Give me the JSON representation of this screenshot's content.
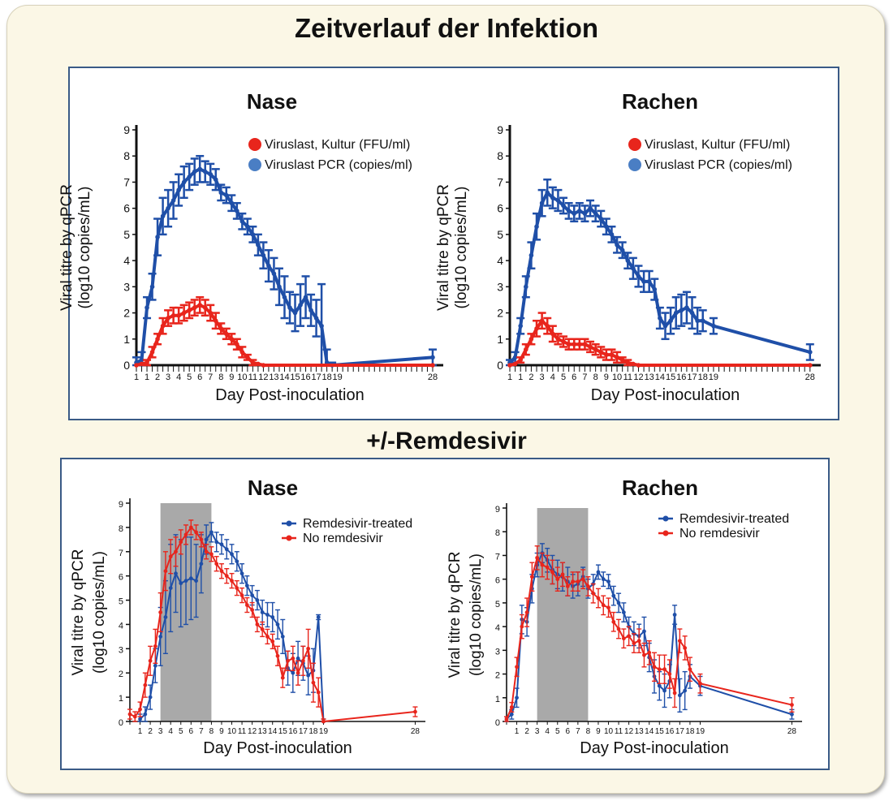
{
  "titles": {
    "top": "Zeitverlauf der Infektion",
    "bottom": "+/-Remdesivir"
  },
  "colors": {
    "red": "#e8251c",
    "blue": "#1f4fa8",
    "legend_blue_dot": "#4a7ec4",
    "shade": "#a9a9a9",
    "axis": "#111111"
  },
  "chart_data": [
    {
      "type": "line",
      "panel": "top-left",
      "title": "Nase",
      "xlabel": "Day Post-inoculation",
      "ylabel_lines": [
        "Viral titre by qPCR",
        "(log10 copies/mL)"
      ],
      "ylim": [
        0,
        9
      ],
      "yticks": [
        0,
        1,
        2,
        3,
        4,
        5,
        6,
        7,
        8,
        9
      ],
      "xlim": [
        0,
        29
      ],
      "xtick_labels": [
        "1",
        "1",
        "2",
        "3",
        "4",
        "5",
        "6",
        "7",
        "8",
        "9",
        "10",
        "11",
        "12",
        "13",
        "14",
        "15",
        "16",
        "17",
        "18",
        "19",
        "28"
      ],
      "legend": {
        "position": "top-right",
        "entries": [
          "Viruslast, Kultur (FFU/ml)",
          "Viruslast PCR (copies/ml)"
        ]
      },
      "series": [
        {
          "name": "Viruslast PCR (copies/ml)",
          "color": "blue",
          "x": [
            0,
            0.5,
            1,
            1.5,
            2,
            2.5,
            3,
            3.5,
            4,
            4.5,
            5,
            5.5,
            6,
            6.5,
            7,
            7.5,
            8,
            8.5,
            9,
            9.5,
            10,
            10.5,
            11,
            11.5,
            12,
            12.5,
            13,
            13.5,
            14,
            14.5,
            15,
            15.5,
            16,
            16.5,
            17,
            17.5,
            18,
            18.5,
            28
          ],
          "y": [
            0.1,
            0.2,
            2.2,
            3.0,
            4.9,
            5.7,
            6.0,
            6.3,
            6.7,
            7.0,
            7.2,
            7.4,
            7.5,
            7.4,
            7.3,
            7.1,
            6.6,
            6.5,
            6.2,
            5.9,
            5.5,
            5.3,
            5.0,
            4.6,
            4.2,
            3.8,
            3.5,
            3.0,
            2.6,
            2.2,
            2.0,
            2.3,
            2.6,
            2.1,
            1.8,
            1.5,
            0.1,
            0.0,
            0.3
          ],
          "err": [
            0.2,
            0.3,
            0.4,
            0.5,
            0.7,
            0.7,
            0.7,
            0.7,
            0.6,
            0.6,
            0.5,
            0.5,
            0.5,
            0.4,
            0.4,
            0.4,
            0.3,
            0.3,
            0.3,
            0.3,
            0.3,
            0.3,
            0.3,
            0.4,
            0.5,
            0.6,
            0.6,
            0.7,
            0.8,
            0.6,
            0.7,
            0.8,
            0.8,
            0.6,
            0.7,
            1.6,
            0.5,
            0.1,
            0.3
          ]
        },
        {
          "name": "Viruslast, Kultur (FFU/ml)",
          "color": "red",
          "x": [
            0,
            0.5,
            1,
            1.5,
            2,
            2.5,
            3,
            3.5,
            4,
            4.5,
            5,
            5.5,
            6,
            6.5,
            7,
            7.5,
            8,
            8.5,
            9,
            9.5,
            10,
            10.5,
            11,
            11.5,
            12,
            28
          ],
          "y": [
            0.0,
            0.05,
            0.1,
            0.5,
            1.0,
            1.5,
            1.8,
            1.9,
            1.9,
            2.0,
            2.1,
            2.2,
            2.3,
            2.2,
            2.0,
            1.7,
            1.4,
            1.2,
            1.0,
            0.8,
            0.5,
            0.3,
            0.1,
            0.05,
            0.0,
            0.0
          ],
          "err": [
            0,
            0,
            0.1,
            0.2,
            0.2,
            0.3,
            0.3,
            0.3,
            0.3,
            0.3,
            0.3,
            0.3,
            0.3,
            0.3,
            0.3,
            0.3,
            0.2,
            0.2,
            0.2,
            0.2,
            0.2,
            0.1,
            0.1,
            0,
            0,
            0
          ]
        }
      ]
    },
    {
      "type": "line",
      "panel": "top-right",
      "title": "Rachen",
      "xlabel": "Day Post-inoculation",
      "ylabel_lines": [
        "Viral titre by qPCR",
        "(log10 copies/mL)"
      ],
      "ylim": [
        0,
        9
      ],
      "yticks": [
        0,
        1,
        2,
        3,
        4,
        5,
        6,
        7,
        8,
        9
      ],
      "xlim": [
        0,
        29
      ],
      "xtick_labels": [
        "1",
        "1",
        "2",
        "3",
        "4",
        "5",
        "6",
        "7",
        "8",
        "9",
        "10",
        "11",
        "12",
        "13",
        "14",
        "15",
        "16",
        "17",
        "18",
        "19",
        "28"
      ],
      "legend": {
        "position": "top-right",
        "entries": [
          "Viruslast, Kultur (FFU/ml)",
          "Viruslast PCR (copies/ml)"
        ]
      },
      "series": [
        {
          "name": "Viruslast PCR (copies/ml)",
          "color": "blue",
          "x": [
            0,
            0.5,
            1,
            1.5,
            2,
            2.5,
            3,
            3.5,
            4,
            4.5,
            5,
            5.5,
            6,
            6.5,
            7,
            7.5,
            8,
            8.5,
            9,
            9.5,
            10,
            10.5,
            11,
            11.5,
            12,
            12.5,
            13,
            13.5,
            14,
            14.5,
            15,
            15.5,
            16,
            16.5,
            17,
            17.5,
            18,
            19,
            28
          ],
          "y": [
            0.1,
            0.3,
            1.5,
            3.0,
            4.2,
            5.3,
            6.2,
            6.6,
            6.4,
            6.3,
            6.1,
            5.9,
            5.8,
            5.9,
            5.8,
            6.0,
            5.8,
            5.6,
            5.3,
            5.0,
            4.6,
            4.4,
            4.0,
            3.7,
            3.4,
            3.2,
            3.2,
            2.9,
            1.8,
            1.5,
            1.7,
            2.0,
            2.1,
            2.2,
            2.0,
            1.7,
            1.7,
            1.5,
            0.5
          ],
          "err": [
            0.1,
            0.2,
            0.3,
            0.4,
            0.5,
            0.5,
            0.5,
            0.5,
            0.4,
            0.4,
            0.3,
            0.3,
            0.3,
            0.3,
            0.3,
            0.3,
            0.3,
            0.3,
            0.3,
            0.3,
            0.3,
            0.3,
            0.3,
            0.4,
            0.4,
            0.4,
            0.4,
            0.4,
            0.4,
            0.5,
            0.5,
            0.6,
            0.6,
            0.6,
            0.6,
            0.5,
            0.4,
            0.3,
            0.3
          ]
        },
        {
          "name": "Viruslast, Kultur (FFU/ml)",
          "color": "red",
          "x": [
            0,
            0.5,
            1,
            1.5,
            2,
            2.5,
            3,
            3.5,
            4,
            4.5,
            5,
            5.5,
            6,
            6.5,
            7,
            7.5,
            8,
            8.5,
            9,
            9.5,
            10,
            10.5,
            11,
            11.5,
            12,
            28
          ],
          "y": [
            0.0,
            0.05,
            0.2,
            0.6,
            1.0,
            1.4,
            1.7,
            1.5,
            1.2,
            1.0,
            0.9,
            0.8,
            0.8,
            0.8,
            0.8,
            0.7,
            0.6,
            0.5,
            0.4,
            0.4,
            0.3,
            0.2,
            0.1,
            0.05,
            0.0,
            0.0
          ],
          "err": [
            0,
            0,
            0.1,
            0.2,
            0.2,
            0.3,
            0.3,
            0.3,
            0.3,
            0.2,
            0.2,
            0.2,
            0.2,
            0.2,
            0.2,
            0.2,
            0.2,
            0.2,
            0.2,
            0.2,
            0.2,
            0.1,
            0.1,
            0,
            0,
            0
          ]
        }
      ]
    },
    {
      "type": "line",
      "panel": "bottom-left",
      "title": "Nase",
      "xlabel": "Day Post-inoculation",
      "ylabel_lines": [
        "Viral titre by qPCR",
        "(log10 copies/mL)"
      ],
      "ylim": [
        0,
        9
      ],
      "yticks": [
        0,
        1,
        2,
        3,
        4,
        5,
        6,
        7,
        8,
        9
      ],
      "xlim": [
        0,
        29
      ],
      "xtick_labels": [
        "1",
        "2",
        "3",
        "4",
        "5",
        "6",
        "7",
        "8",
        "9",
        "10",
        "11",
        "12",
        "13",
        "14",
        "15",
        "16",
        "17",
        "18",
        "19",
        "28"
      ],
      "shaded_x": [
        3,
        8
      ],
      "legend": {
        "position": "top-right",
        "entries": [
          "Remdesivir-treated",
          "No remdesivir"
        ]
      },
      "series": [
        {
          "name": "Remdesivir-treated",
          "color": "blue",
          "x": [
            1,
            1.5,
            2,
            2.5,
            3,
            3.5,
            4,
            4.5,
            5,
            5.5,
            6,
            6.5,
            7,
            7.5,
            8,
            8.5,
            9,
            9.5,
            10,
            10.5,
            11,
            11.5,
            12,
            12.5,
            13,
            13.5,
            14,
            14.5,
            15,
            15.5,
            16,
            16.5,
            17,
            17.5,
            18,
            18.5,
            19
          ],
          "y": [
            0.1,
            0.3,
            1.0,
            2.3,
            3.5,
            4.3,
            5.5,
            6.1,
            5.7,
            5.8,
            5.9,
            5.8,
            6.5,
            7.5,
            7.8,
            7.4,
            7.3,
            7.1,
            6.9,
            6.6,
            6.1,
            5.6,
            5.2,
            5.0,
            4.5,
            4.4,
            4.3,
            4.0,
            3.5,
            2.2,
            2.0,
            2.6,
            2.4,
            1.9,
            2.1,
            4.3,
            0.0
          ],
          "err": [
            0.2,
            0.3,
            0.5,
            0.7,
            1.2,
            1.5,
            1.8,
            1.6,
            1.8,
            1.8,
            1.7,
            1.5,
            1.2,
            0.6,
            0.4,
            0.4,
            0.4,
            0.4,
            0.4,
            0.4,
            0.4,
            0.4,
            0.4,
            0.4,
            0.5,
            0.5,
            0.6,
            0.6,
            0.7,
            0.7,
            0.8,
            0.7,
            0.7,
            0.8,
            0.9,
            0.1,
            0.1
          ]
        },
        {
          "name": "No remdesivir",
          "color": "red",
          "x": [
            0,
            0.5,
            1,
            1.5,
            2,
            2.5,
            3,
            3.5,
            4,
            4.5,
            5,
            5.5,
            6,
            6.5,
            7,
            7.5,
            8,
            8.5,
            9,
            9.5,
            10,
            10.5,
            11,
            11.5,
            12,
            12.5,
            13,
            13.5,
            14,
            14.5,
            15,
            15.5,
            16,
            16.5,
            17,
            17.5,
            18,
            18.5,
            19,
            28
          ],
          "y": [
            0.3,
            0.2,
            0.5,
            1.5,
            2.5,
            3.1,
            4.5,
            6.2,
            6.8,
            7.0,
            7.4,
            7.7,
            8.0,
            7.8,
            7.5,
            7.0,
            6.9,
            6.5,
            6.2,
            6.0,
            5.8,
            5.5,
            5.2,
            4.8,
            4.6,
            4.0,
            3.8,
            3.5,
            3.3,
            2.7,
            1.8,
            2.5,
            2.6,
            2.0,
            2.5,
            3.0,
            1.6,
            1.2,
            0.0,
            0.4
          ],
          "err": [
            0.2,
            0.2,
            0.3,
            0.5,
            0.6,
            0.7,
            0.8,
            0.8,
            0.7,
            0.6,
            0.5,
            0.4,
            0.3,
            0.3,
            0.3,
            0.3,
            0.3,
            0.3,
            0.3,
            0.3,
            0.3,
            0.3,
            0.3,
            0.3,
            0.3,
            0.3,
            0.3,
            0.3,
            0.3,
            0.4,
            0.4,
            0.4,
            0.5,
            0.5,
            0.6,
            0.8,
            0.8,
            0.6,
            0.1,
            0.2
          ]
        }
      ]
    },
    {
      "type": "line",
      "panel": "bottom-right",
      "title": "Rachen",
      "xlabel": "Day Post-inoculation",
      "ylabel_lines": [
        "Viral titre by qPCR",
        "(log10 copies/mL)"
      ],
      "ylim": [
        0,
        9
      ],
      "yticks": [
        0,
        1,
        2,
        3,
        4,
        5,
        6,
        7,
        8,
        9
      ],
      "xlim": [
        0,
        29
      ],
      "xtick_labels": [
        "1",
        "2",
        "3",
        "4",
        "5",
        "6",
        "7",
        "8",
        "9",
        "10",
        "11",
        "12",
        "13",
        "14",
        "15",
        "16",
        "17",
        "18",
        "19",
        "28"
      ],
      "shaded_x": [
        3,
        8
      ],
      "legend": {
        "position": "top-right",
        "entries": [
          "Remdesivir-treated",
          "No remdesivir"
        ]
      },
      "series": [
        {
          "name": "Remdesivir-treated",
          "color": "blue",
          "x": [
            0,
            0.5,
            1,
            1.5,
            2,
            2.5,
            3,
            3.5,
            4,
            4.5,
            5,
            5.5,
            6,
            6.5,
            7,
            7.5,
            8,
            8.5,
            9,
            9.5,
            10,
            10.5,
            11,
            11.5,
            12,
            12.5,
            13,
            13.5,
            14,
            14.5,
            15,
            15.5,
            16,
            16.5,
            17,
            17.5,
            18,
            19,
            28
          ],
          "y": [
            0.1,
            0.3,
            1.0,
            4.3,
            4.2,
            5.6,
            6.6,
            7.1,
            6.8,
            6.4,
            6.2,
            6.1,
            5.9,
            5.7,
            5.8,
            6.1,
            5.6,
            5.8,
            6.3,
            6.0,
            5.9,
            5.3,
            5.0,
            4.6,
            4.0,
            3.7,
            3.6,
            3.8,
            2.7,
            1.9,
            1.5,
            1.3,
            1.7,
            4.5,
            1.1,
            1.3,
            1.9,
            1.5,
            0.3
          ],
          "err": [
            0.1,
            0.2,
            0.4,
            0.6,
            0.6,
            0.6,
            0.5,
            0.4,
            0.5,
            0.6,
            0.6,
            0.6,
            0.6,
            0.5,
            0.5,
            0.4,
            0.4,
            0.4,
            0.3,
            0.3,
            0.3,
            0.4,
            0.4,
            0.4,
            0.4,
            0.5,
            0.5,
            0.6,
            0.6,
            0.7,
            0.6,
            0.7,
            0.7,
            0.4,
            0.7,
            0.8,
            0.5,
            0.4,
            0.2
          ]
        },
        {
          "name": "No remdesivir",
          "color": "red",
          "x": [
            0,
            0.5,
            1,
            1.5,
            2,
            2.5,
            3,
            3.5,
            4,
            4.5,
            5,
            5.5,
            6,
            6.5,
            7,
            7.5,
            8,
            8.5,
            9,
            9.5,
            10,
            10.5,
            11,
            11.5,
            12,
            12.5,
            13,
            13.5,
            14,
            14.5,
            15,
            15.5,
            16,
            16.5,
            17,
            17.5,
            18,
            19,
            28
          ],
          "y": [
            0.1,
            0.6,
            2.3,
            4.0,
            4.6,
            6.1,
            6.9,
            6.6,
            6.5,
            6.3,
            6.0,
            6.2,
            5.7,
            5.9,
            5.9,
            6.0,
            5.7,
            5.4,
            5.2,
            4.9,
            4.8,
            4.2,
            3.9,
            3.5,
            3.6,
            3.3,
            3.4,
            2.8,
            2.9,
            2.3,
            2.2,
            2.2,
            2.0,
            1.2,
            3.4,
            3.1,
            2.2,
            1.6,
            0.7
          ],
          "err": [
            0.1,
            0.2,
            0.4,
            0.5,
            0.6,
            0.6,
            0.5,
            0.5,
            0.5,
            0.5,
            0.5,
            0.5,
            0.4,
            0.4,
            0.4,
            0.4,
            0.4,
            0.4,
            0.4,
            0.4,
            0.4,
            0.4,
            0.4,
            0.4,
            0.4,
            0.4,
            0.5,
            0.5,
            0.5,
            0.6,
            0.6,
            0.6,
            0.6,
            0.6,
            0.5,
            0.5,
            0.5,
            0.4,
            0.3
          ]
        }
      ]
    }
  ]
}
